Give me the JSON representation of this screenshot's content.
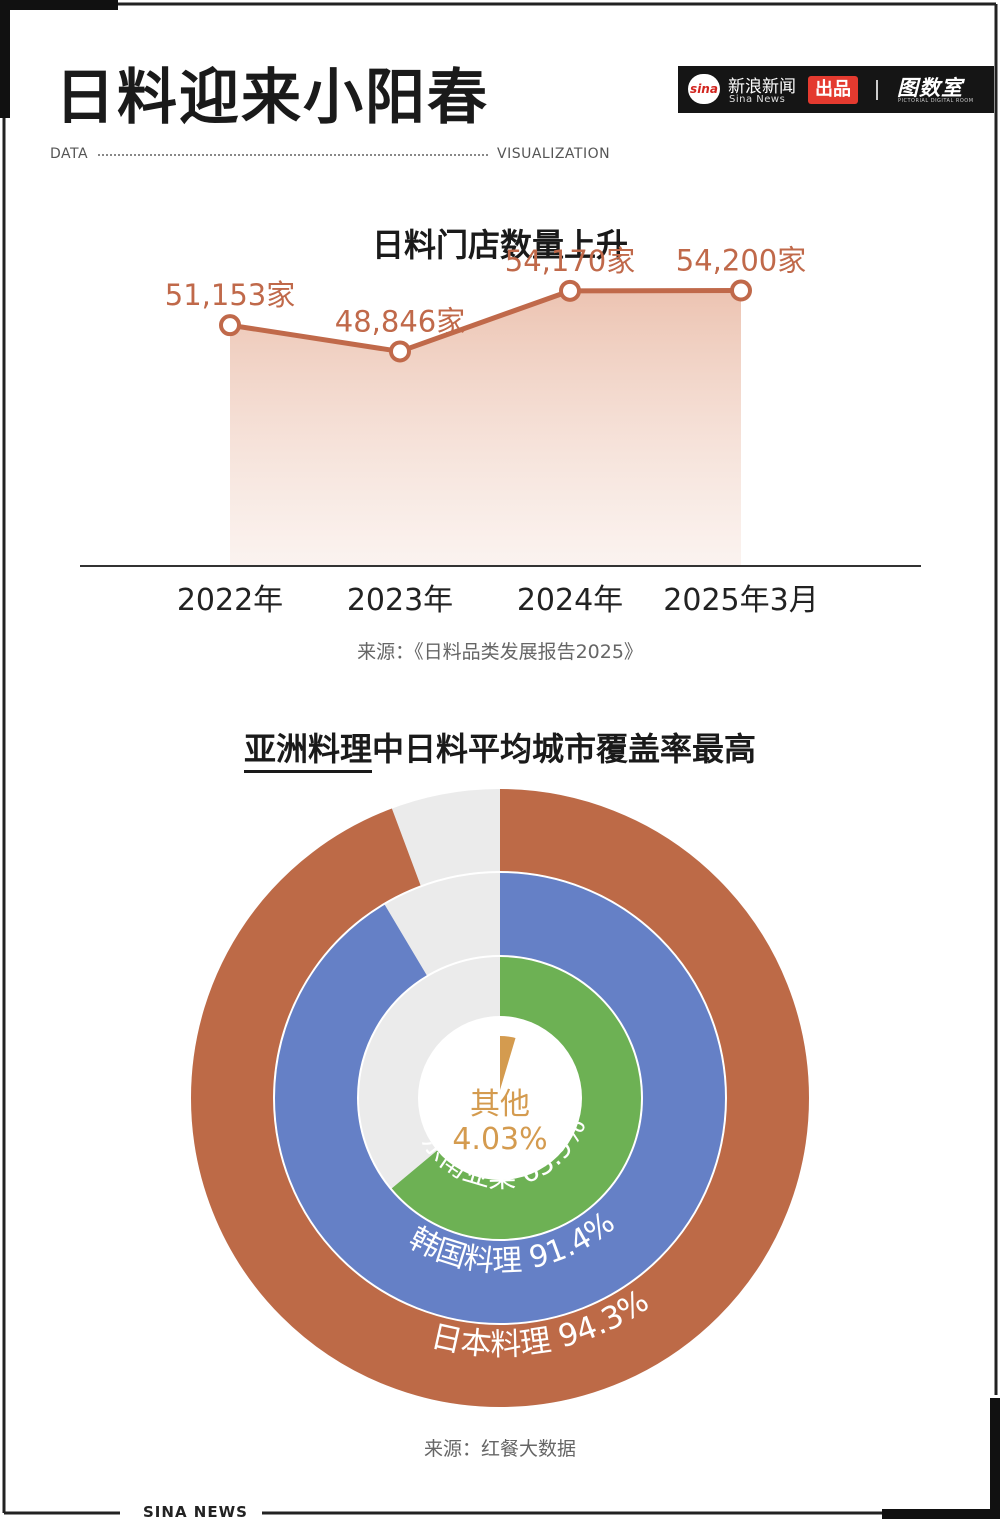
{
  "header": {
    "title": "日料迎来小阳春",
    "data_label": "DATA",
    "viz_label": "VISUALIZATION",
    "brand": {
      "sina_logo": "sina",
      "sina_name": "新浪新闻",
      "sina_sub": "Sina News",
      "badge": "出品",
      "partner": "图数室",
      "partner_sub": "PICTORIAL DIGITAL ROOM"
    }
  },
  "line_section": {
    "title": "日料门店数量上升",
    "source": "来源：《日料品类发展报告2025》"
  },
  "donut_section": {
    "title_underlined": "亚洲料理",
    "title_rest": "中日料平均城市覆盖率最高",
    "source": "来源：红餐大数据"
  },
  "footer": {
    "text": "SINA  NEWS"
  },
  "colors": {
    "line": "#c0694a",
    "area": "#e9b9a4",
    "japanese": "#bd6a47",
    "korean": "#6580c6",
    "sea": "#6db154",
    "other": "#d49b4f",
    "track": "#ebebeb"
  },
  "chart_data": [
    {
      "type": "line",
      "categories": [
        "2022年",
        "2023年",
        "2024年",
        "2025年3月"
      ],
      "values": [
        51153,
        48846,
        54170,
        54200
      ],
      "data_labels": [
        "51,153家",
        "48,846家",
        "54,170家",
        "54,200家"
      ],
      "title": "日料门店数量上升",
      "xlabel": "",
      "ylabel": "",
      "ylim": [
        30000,
        56000
      ],
      "grid": false
    },
    {
      "type": "pie",
      "variant": "concentric-donut",
      "series": [
        {
          "name": "日本料理",
          "label": "日本料理 94.3%",
          "value": 94.3
        },
        {
          "name": "韩国料理",
          "label": "韩国料理 91.4%",
          "value": 91.4
        },
        {
          "name": "东南亚菜",
          "label": "东南亚菜 63.9%",
          "value": 63.9
        },
        {
          "name": "其他",
          "label": "4.03%",
          "value": 4.03
        }
      ],
      "max": 100
    }
  ]
}
